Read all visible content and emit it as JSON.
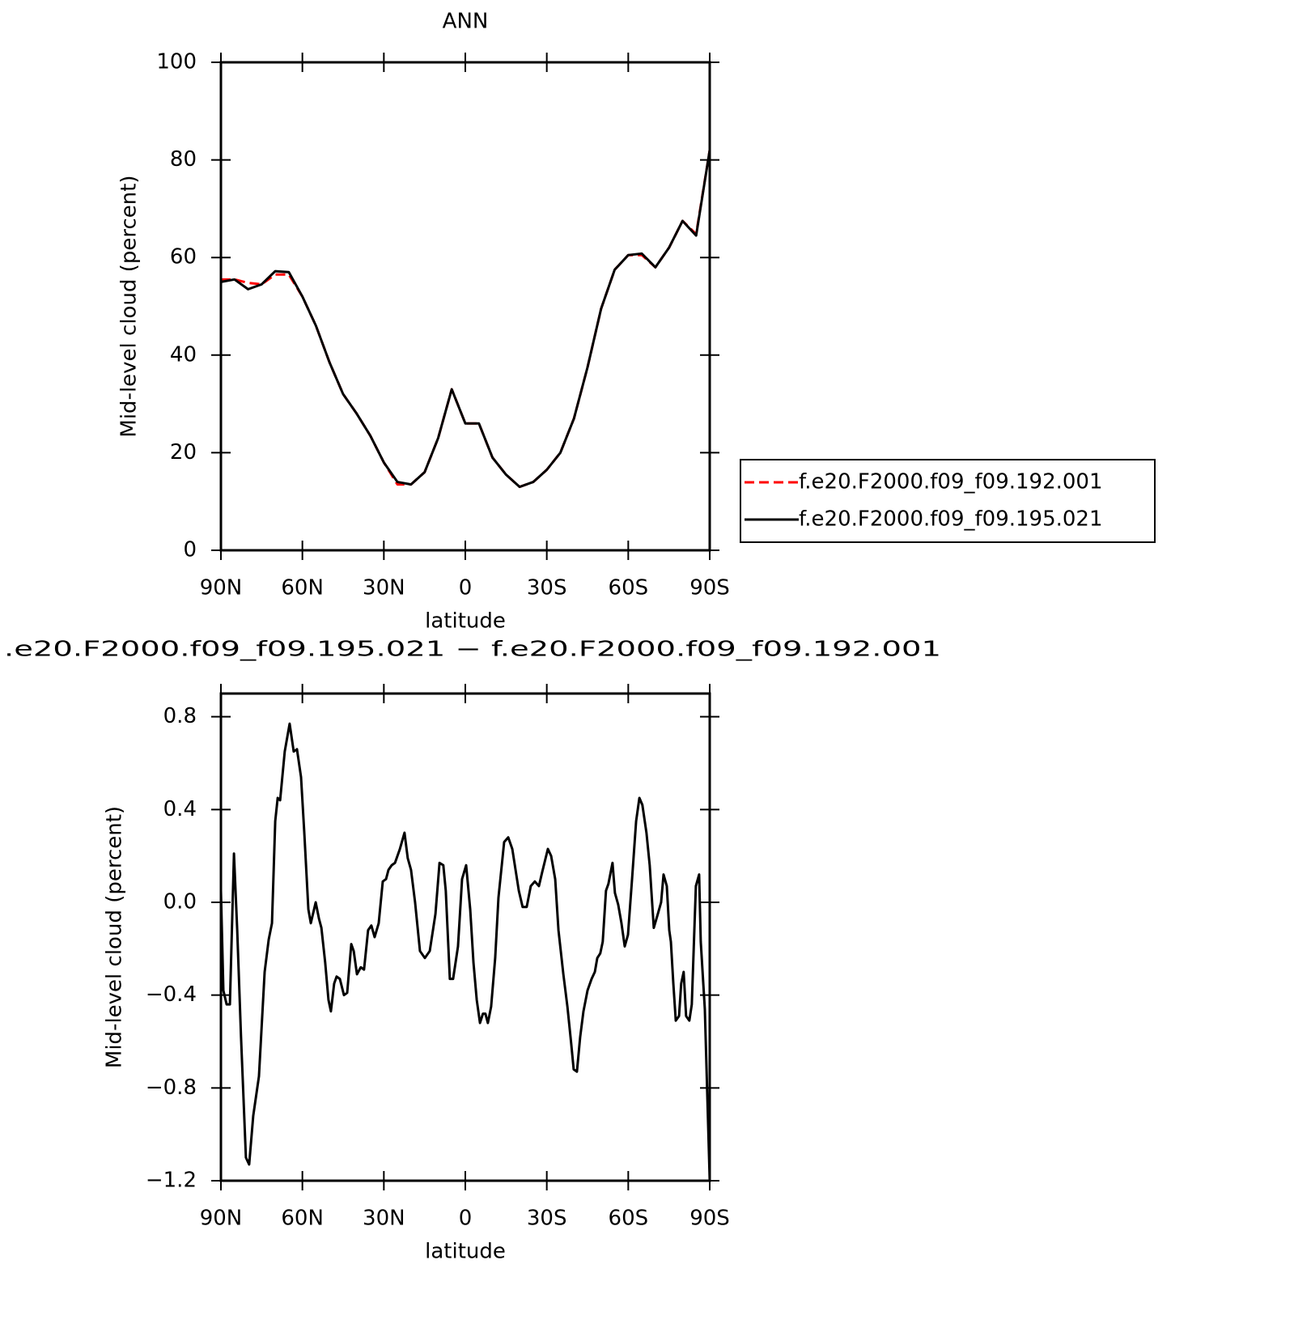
{
  "chart_data": [
    {
      "type": "line",
      "title": "ANN",
      "xlabel": "latitude",
      "ylabel": "Mid-level cloud (percent)",
      "x": [
        90,
        85,
        80,
        75,
        70,
        65,
        60,
        55,
        50,
        45,
        40,
        35,
        30,
        25,
        20,
        15,
        10,
        5,
        0,
        -5,
        -10,
        -15,
        -20,
        -25,
        -30,
        -35,
        -40,
        -45,
        -50,
        -55,
        -60,
        -65,
        -70,
        -75,
        -80,
        -85,
        -90
      ],
      "series": [
        {
          "name": "f.e20.F2000.f09_f09.192.001",
          "color": "#ff0000",
          "dash": true,
          "values": [
            55.5,
            55.5,
            54.8,
            54.5,
            56.5,
            56.5,
            52,
            46,
            38.5,
            32,
            28,
            23.5,
            18,
            13.5,
            13.5,
            16,
            23,
            33,
            26,
            26,
            19,
            15.5,
            13,
            14,
            16.5,
            20,
            27,
            37.5,
            49.5,
            57.5,
            60.5,
            60.5,
            58,
            62,
            67.5,
            64.8,
            82
          ]
        },
        {
          "name": "f.e20.F2000.f09_f09.195.021",
          "color": "#000000",
          "dash": false,
          "values": [
            55,
            55.5,
            53.5,
            54.5,
            57.2,
            57,
            52,
            46,
            38.5,
            32,
            28,
            23.5,
            18,
            14,
            13.5,
            16,
            23,
            33,
            26,
            26,
            19,
            15.5,
            13,
            14,
            16.5,
            20,
            27,
            37.5,
            49.5,
            57.5,
            60.5,
            60.8,
            58,
            62,
            67.5,
            64.5,
            82
          ]
        }
      ],
      "xlim": [
        90,
        -90
      ],
      "xticks": [
        {
          "value": 90,
          "label": "90N"
        },
        {
          "value": 60,
          "label": "60N"
        },
        {
          "value": 30,
          "label": "30N"
        },
        0,
        {
          "value": -30,
          "label": "30S"
        },
        {
          "value": -60,
          "label": "60S"
        },
        {
          "value": -90,
          "label": "90S"
        }
      ],
      "ylim": [
        0,
        100
      ],
      "yticks": [
        0,
        20,
        40,
        60,
        80,
        100
      ],
      "legend": "right"
    },
    {
      "type": "line",
      "title": ".e20.F2000.f09_f09.195.021 − f.e20.F2000.f09_f09.192.001",
      "xlabel": "latitude",
      "ylabel": "Mid-level cloud (percent)",
      "x": [
        90,
        89.1,
        87.9,
        86.7,
        85.2,
        84,
        82.6,
        80.8,
        79.6,
        78.1,
        76,
        73.9,
        72.4,
        71.2,
        70,
        69.1,
        68.2,
        66.5,
        64.7,
        63.2,
        62,
        60.5,
        59.3,
        57.8,
        56.9,
        55.1,
        53.9,
        53,
        51.6,
        50.4,
        49.5,
        48.3,
        47.4,
        46.2,
        44.7,
        43.5,
        42,
        41.1,
        39.9,
        38.5,
        37.3,
        35.8,
        34.6,
        33.4,
        31.9,
        30.4,
        29.2,
        28.3,
        27.1,
        25.9,
        24.1,
        22.4,
        21.2,
        20,
        18.5,
        16.7,
        14.9,
        13.1,
        11,
        9.5,
        8.1,
        7.2,
        5.7,
        4.5,
        2.7,
        1.2,
        -0.3,
        -1.8,
        -3,
        -4.2,
        -5.4,
        -6.5,
        -7.4,
        -8.3,
        -9.5,
        -11,
        -12.2,
        -14.3,
        -15.8,
        -17.3,
        -19.7,
        -21.1,
        -22.6,
        -24.1,
        -25.6,
        -27.1,
        -28.3,
        -30.4,
        -31.6,
        -33.1,
        -34.3,
        -36.1,
        -37.6,
        -39,
        -39.9,
        -41.1,
        -42.3,
        -43.5,
        -45,
        -46.5,
        -47.7,
        -48.6,
        -49.7,
        -50.6,
        -51.8,
        -52.7,
        -54.2,
        -55.1,
        -56.3,
        -57.5,
        -58.7,
        -59.9,
        -61.4,
        -62.9,
        -64.1,
        -65.2,
        -66.7,
        -67.9,
        -69.4,
        -70.9,
        -72.1,
        -73,
        -74.2,
        -75.1,
        -75.7,
        -76.6,
        -77.5,
        -78.7,
        -79.5,
        -80.4,
        -81.3,
        -82.5,
        -83.4,
        -84.9,
        -86.1,
        -86.7,
        -88.2,
        -90
      ],
      "values": [
        0.05,
        -0.38,
        -0.44,
        -0.44,
        0.21,
        -0.12,
        -0.58,
        -1.1,
        -1.13,
        -0.92,
        -0.75,
        -0.3,
        -0.16,
        -0.09,
        0.35,
        0.45,
        0.44,
        0.65,
        0.77,
        0.65,
        0.66,
        0.54,
        0.3,
        -0.03,
        -0.09,
        0,
        -0.07,
        -0.11,
        -0.26,
        -0.42,
        -0.47,
        -0.35,
        -0.32,
        -0.33,
        -0.4,
        -0.39,
        -0.18,
        -0.21,
        -0.31,
        -0.28,
        -0.29,
        -0.12,
        -0.1,
        -0.15,
        -0.09,
        0.09,
        0.1,
        0.14,
        0.16,
        0.17,
        0.23,
        0.3,
        0.19,
        0.14,
        0,
        -0.21,
        -0.24,
        -0.21,
        -0.05,
        0.17,
        0.16,
        0.05,
        -0.33,
        -0.33,
        -0.19,
        0.1,
        0.16,
        -0.03,
        -0.26,
        -0.42,
        -0.52,
        -0.48,
        -0.48,
        -0.52,
        -0.45,
        -0.24,
        0.02,
        0.26,
        0.28,
        0.23,
        0.05,
        -0.02,
        -0.02,
        0.07,
        0.09,
        0.07,
        0.13,
        0.23,
        0.2,
        0.1,
        -0.12,
        -0.31,
        -0.45,
        -0.61,
        -0.72,
        -0.73,
        -0.58,
        -0.47,
        -0.38,
        -0.33,
        -0.3,
        -0.24,
        -0.22,
        -0.17,
        0.05,
        0.08,
        0.17,
        0.04,
        -0.01,
        -0.09,
        -0.19,
        -0.14,
        0.1,
        0.35,
        0.45,
        0.42,
        0.3,
        0.16,
        -0.11,
        -0.05,
        0,
        0.12,
        0.07,
        -0.12,
        -0.17,
        -0.35,
        -0.51,
        -0.49,
        -0.35,
        -0.3,
        -0.49,
        -0.51,
        -0.44,
        0.07,
        0.12,
        -0.17,
        -0.46,
        -1.2
      ],
      "color": "#000000",
      "xlim": [
        90,
        -90
      ],
      "xticks": [
        {
          "value": 90,
          "label": "90N"
        },
        {
          "value": 60,
          "label": "60N"
        },
        {
          "value": 30,
          "label": "30N"
        },
        0,
        {
          "value": -30,
          "label": "30S"
        },
        {
          "value": -60,
          "label": "60S"
        },
        {
          "value": -90,
          "label": "90S"
        }
      ],
      "ylim": [
        -1.2,
        0.9
      ],
      "yticks": [
        {
          "value": -1.2,
          "label": "−1.2"
        },
        {
          "value": -0.8,
          "label": "−0.8"
        },
        {
          "value": -0.4,
          "label": "−0.4"
        },
        {
          "value": 0,
          "label": "0.0"
        },
        0.4,
        0.8
      ]
    }
  ]
}
